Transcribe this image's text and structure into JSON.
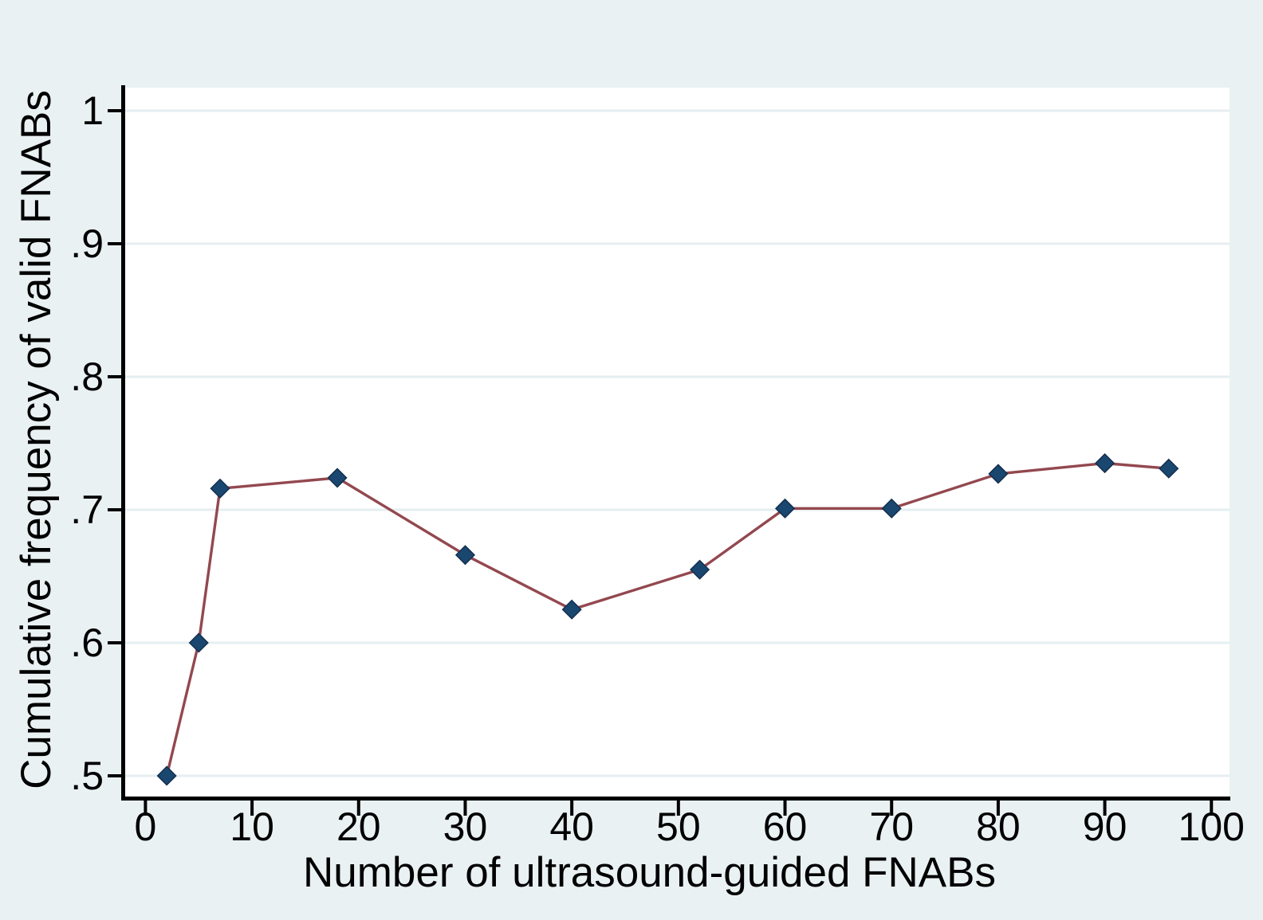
{
  "figure": {
    "background": "#eaf1f2",
    "plot_background": "#ffffff"
  },
  "chart_data": {
    "type": "line",
    "title": "",
    "xlabel": "Number of ultrasound-guided FNABs",
    "ylabel": "Cumulative frequency of valid FNABs",
    "series": [
      {
        "name": "Cumulative frequency of valid FNABs",
        "x": [
          2,
          5,
          7,
          18,
          30,
          40,
          52,
          60,
          70,
          80,
          90,
          96
        ],
        "y": [
          0.5,
          0.6,
          0.716,
          0.724,
          0.666,
          0.625,
          0.655,
          0.701,
          0.701,
          0.727,
          0.735,
          0.731
        ]
      }
    ],
    "xlim": [
      -1.9,
      101.7
    ],
    "ylim": [
      0.4844,
      1.0174
    ],
    "xticks": [
      {
        "v": 0,
        "label": "0"
      },
      {
        "v": 10,
        "label": "10"
      },
      {
        "v": 20,
        "label": "20"
      },
      {
        "v": 30,
        "label": "30"
      },
      {
        "v": 40,
        "label": "40"
      },
      {
        "v": 50,
        "label": "50"
      },
      {
        "v": 60,
        "label": "60"
      },
      {
        "v": 70,
        "label": "70"
      },
      {
        "v": 80,
        "label": "80"
      },
      {
        "v": 90,
        "label": "90"
      },
      {
        "v": 100,
        "label": "100"
      }
    ],
    "yticks": [
      {
        "v": 1.0,
        "label": "1"
      },
      {
        "v": 0.9,
        "label": ".9"
      },
      {
        "v": 0.8,
        "label": ".8"
      },
      {
        "v": 0.7,
        "label": ".7"
      },
      {
        "v": 0.6,
        "label": ".6"
      },
      {
        "v": 0.5,
        "label": ".5"
      }
    ],
    "grid": "horizontal-only",
    "legend": "none",
    "line_color": "#93484f",
    "marker": "diamond",
    "marker_color": "#1a476f",
    "marker_edge_color": "#142f4e",
    "gridline_color": "#e6eef1",
    "axis_color": "#000000"
  }
}
